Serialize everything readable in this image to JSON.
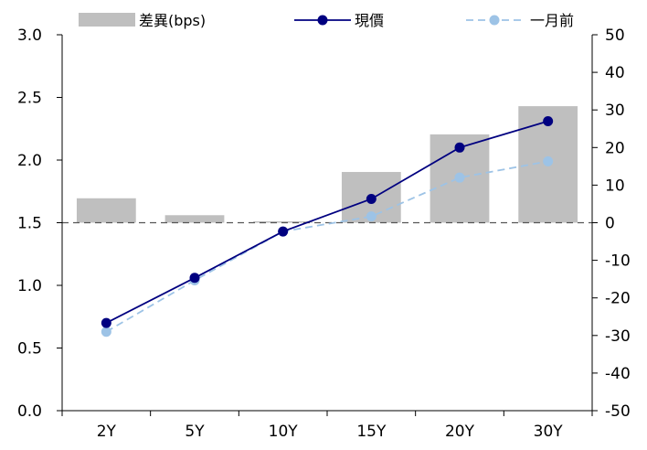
{
  "chart_data": {
    "type": "bar+line",
    "categories": [
      "2Y",
      "5Y",
      "10Y",
      "15Y",
      "20Y",
      "30Y"
    ],
    "series": [
      {
        "name": "差異(bps)",
        "kind": "bar",
        "axis": "right",
        "color": "#bfbfbf",
        "values": [
          6.5,
          2,
          0,
          13.5,
          23.5,
          31
        ]
      },
      {
        "name": "現價",
        "kind": "line",
        "axis": "left",
        "color": "#000080",
        "dash": false,
        "values": [
          0.7,
          1.06,
          1.43,
          1.69,
          2.1,
          2.31
        ]
      },
      {
        "name": "一月前",
        "kind": "line",
        "axis": "left",
        "color": "#9dc3e6",
        "dash": true,
        "values": [
          0.63,
          1.04,
          1.43,
          1.55,
          1.86,
          1.99
        ]
      }
    ],
    "y_left": {
      "min": 0,
      "max": 3.0,
      "ticks": [
        "0.0",
        "0.5",
        "1.0",
        "1.5",
        "2.0",
        "2.5",
        "3.0"
      ],
      "values": [
        0,
        0.5,
        1.0,
        1.5,
        2.0,
        2.5,
        3.0
      ]
    },
    "y_right": {
      "min": -50,
      "max": 50,
      "ticks": [
        "-50",
        "-40",
        "-30",
        "-20",
        "-10",
        "0",
        "10",
        "20",
        "30",
        "40",
        "50"
      ],
      "values": [
        -50,
        -40,
        -30,
        -20,
        -10,
        0,
        10,
        20,
        30,
        40,
        50
      ]
    },
    "reference_line": {
      "axis": "right",
      "value": 0,
      "style": "dashed"
    },
    "legend_position": "top",
    "grid": false
  }
}
